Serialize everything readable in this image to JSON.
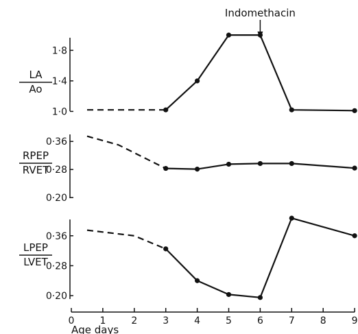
{
  "chart_data": [
    {
      "type": "line",
      "ylabel_num": "LA",
      "ylabel_den": "Ao",
      "yticks": [
        "1·0",
        "1·4",
        "1·8"
      ],
      "ylim": [
        0.95,
        2.1
      ],
      "series": [
        {
          "style": "dashed",
          "x": [
            0.5,
            3
          ],
          "y": [
            1.02,
            1.02
          ]
        },
        {
          "style": "solid",
          "x": [
            3,
            4,
            5,
            6,
            7,
            9
          ],
          "y": [
            1.02,
            1.4,
            2.0,
            2.0,
            1.02,
            1.01
          ]
        }
      ]
    },
    {
      "type": "line",
      "ylabel_num": "RPEP",
      "ylabel_den": "RVET",
      "yticks": [
        "0·20",
        "0·28",
        "0·36"
      ],
      "ylim": [
        0.2,
        0.38
      ],
      "series": [
        {
          "style": "dashed",
          "x": [
            0.5,
            1.5,
            2.5,
            3
          ],
          "y": [
            0.375,
            0.35,
            0.305,
            0.283
          ]
        },
        {
          "style": "solid",
          "x": [
            3,
            4,
            5,
            6,
            7,
            9
          ],
          "y": [
            0.283,
            0.281,
            0.295,
            0.297,
            0.297,
            0.284
          ]
        }
      ]
    },
    {
      "type": "line",
      "ylabel_num": "LPEP",
      "ylabel_den": "LVET",
      "yticks": [
        "0·20",
        "0·28",
        "0·36"
      ],
      "ylim": [
        0.18,
        0.42
      ],
      "series": [
        {
          "style": "dashed",
          "x": [
            0.5,
            2,
            3
          ],
          "y": [
            0.375,
            0.36,
            0.325
          ]
        },
        {
          "style": "solid",
          "x": [
            3,
            4,
            5,
            6,
            7,
            9
          ],
          "y": [
            0.325,
            0.24,
            0.203,
            0.195,
            0.407,
            0.36
          ]
        }
      ]
    }
  ],
  "xaxis": {
    "ticks": [
      "0",
      "1",
      "2",
      "3",
      "4",
      "5",
      "6",
      "7",
      "8",
      "9"
    ],
    "label": "Age  days"
  },
  "annotation": {
    "text": "Indomethacin",
    "x": 6
  }
}
